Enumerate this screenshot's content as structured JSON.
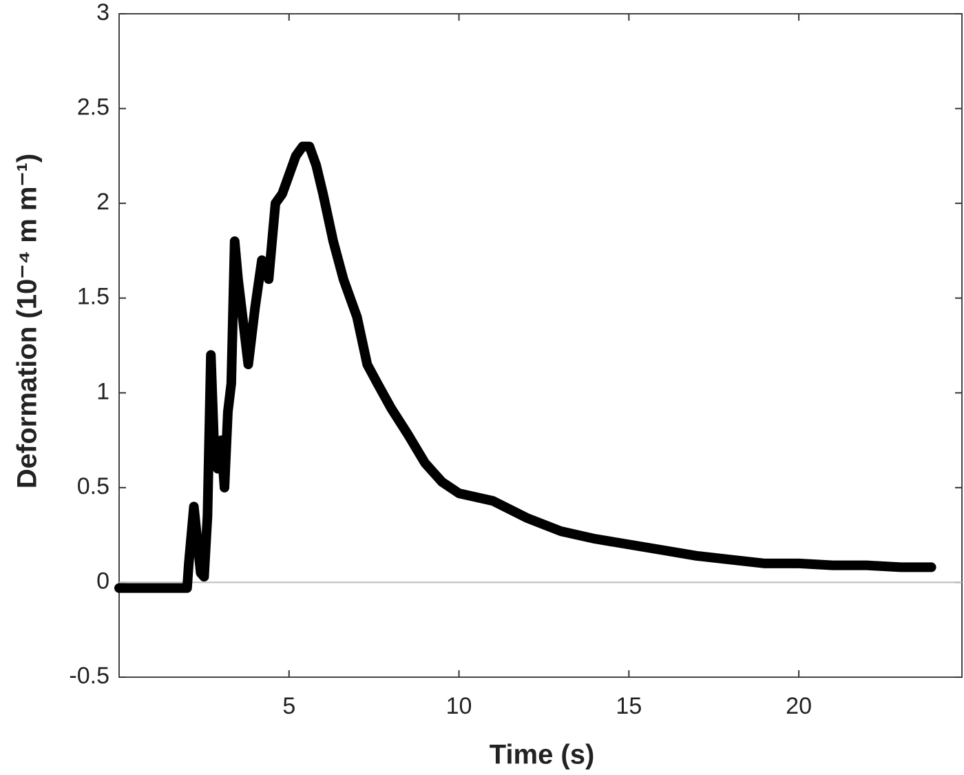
{
  "chart_data": {
    "type": "line",
    "xlabel": "Time (s)",
    "ylabel": "Deformation (10⁻⁴ m m⁻¹)",
    "x": [
      0,
      1,
      2,
      2.05,
      2.2,
      2.4,
      2.5,
      2.6,
      2.7,
      2.8,
      2.9,
      3.0,
      3.1,
      3.2,
      3.3,
      3.4,
      3.5,
      3.6,
      3.8,
      4.0,
      4.2,
      4.4,
      4.6,
      4.8,
      5.0,
      5.2,
      5.4,
      5.6,
      5.8,
      6.0,
      6.3,
      6.6,
      7.0,
      7.3,
      7.6,
      8.0,
      8.5,
      9.0,
      9.5,
      10,
      11,
      12,
      13,
      14,
      15,
      16,
      17,
      18,
      19,
      20,
      21,
      22,
      23,
      23.9
    ],
    "series": [
      {
        "color": "#000000",
        "values": [
          -0.03,
          -0.03,
          -0.03,
          0.1,
          0.4,
          0.05,
          0.03,
          0.35,
          1.2,
          0.7,
          0.6,
          0.75,
          0.5,
          0.9,
          1.05,
          1.8,
          1.6,
          1.45,
          1.15,
          1.45,
          1.7,
          1.6,
          2.0,
          2.05,
          2.15,
          2.25,
          2.3,
          2.3,
          2.2,
          2.05,
          1.8,
          1.6,
          1.4,
          1.15,
          1.05,
          0.92,
          0.78,
          0.63,
          0.53,
          0.47,
          0.43,
          0.34,
          0.27,
          0.23,
          0.2,
          0.17,
          0.14,
          0.12,
          0.1,
          0.1,
          0.09,
          0.09,
          0.08,
          0.08
        ]
      }
    ],
    "xlim": [
      0,
      24.8
    ],
    "xticks": [
      5,
      10,
      15,
      20
    ],
    "ylim": [
      -0.5,
      3
    ],
    "yticks": [
      -0.5,
      0,
      0.5,
      1,
      1.5,
      2,
      2.5,
      3
    ],
    "zero_line": true,
    "grid": false
  }
}
